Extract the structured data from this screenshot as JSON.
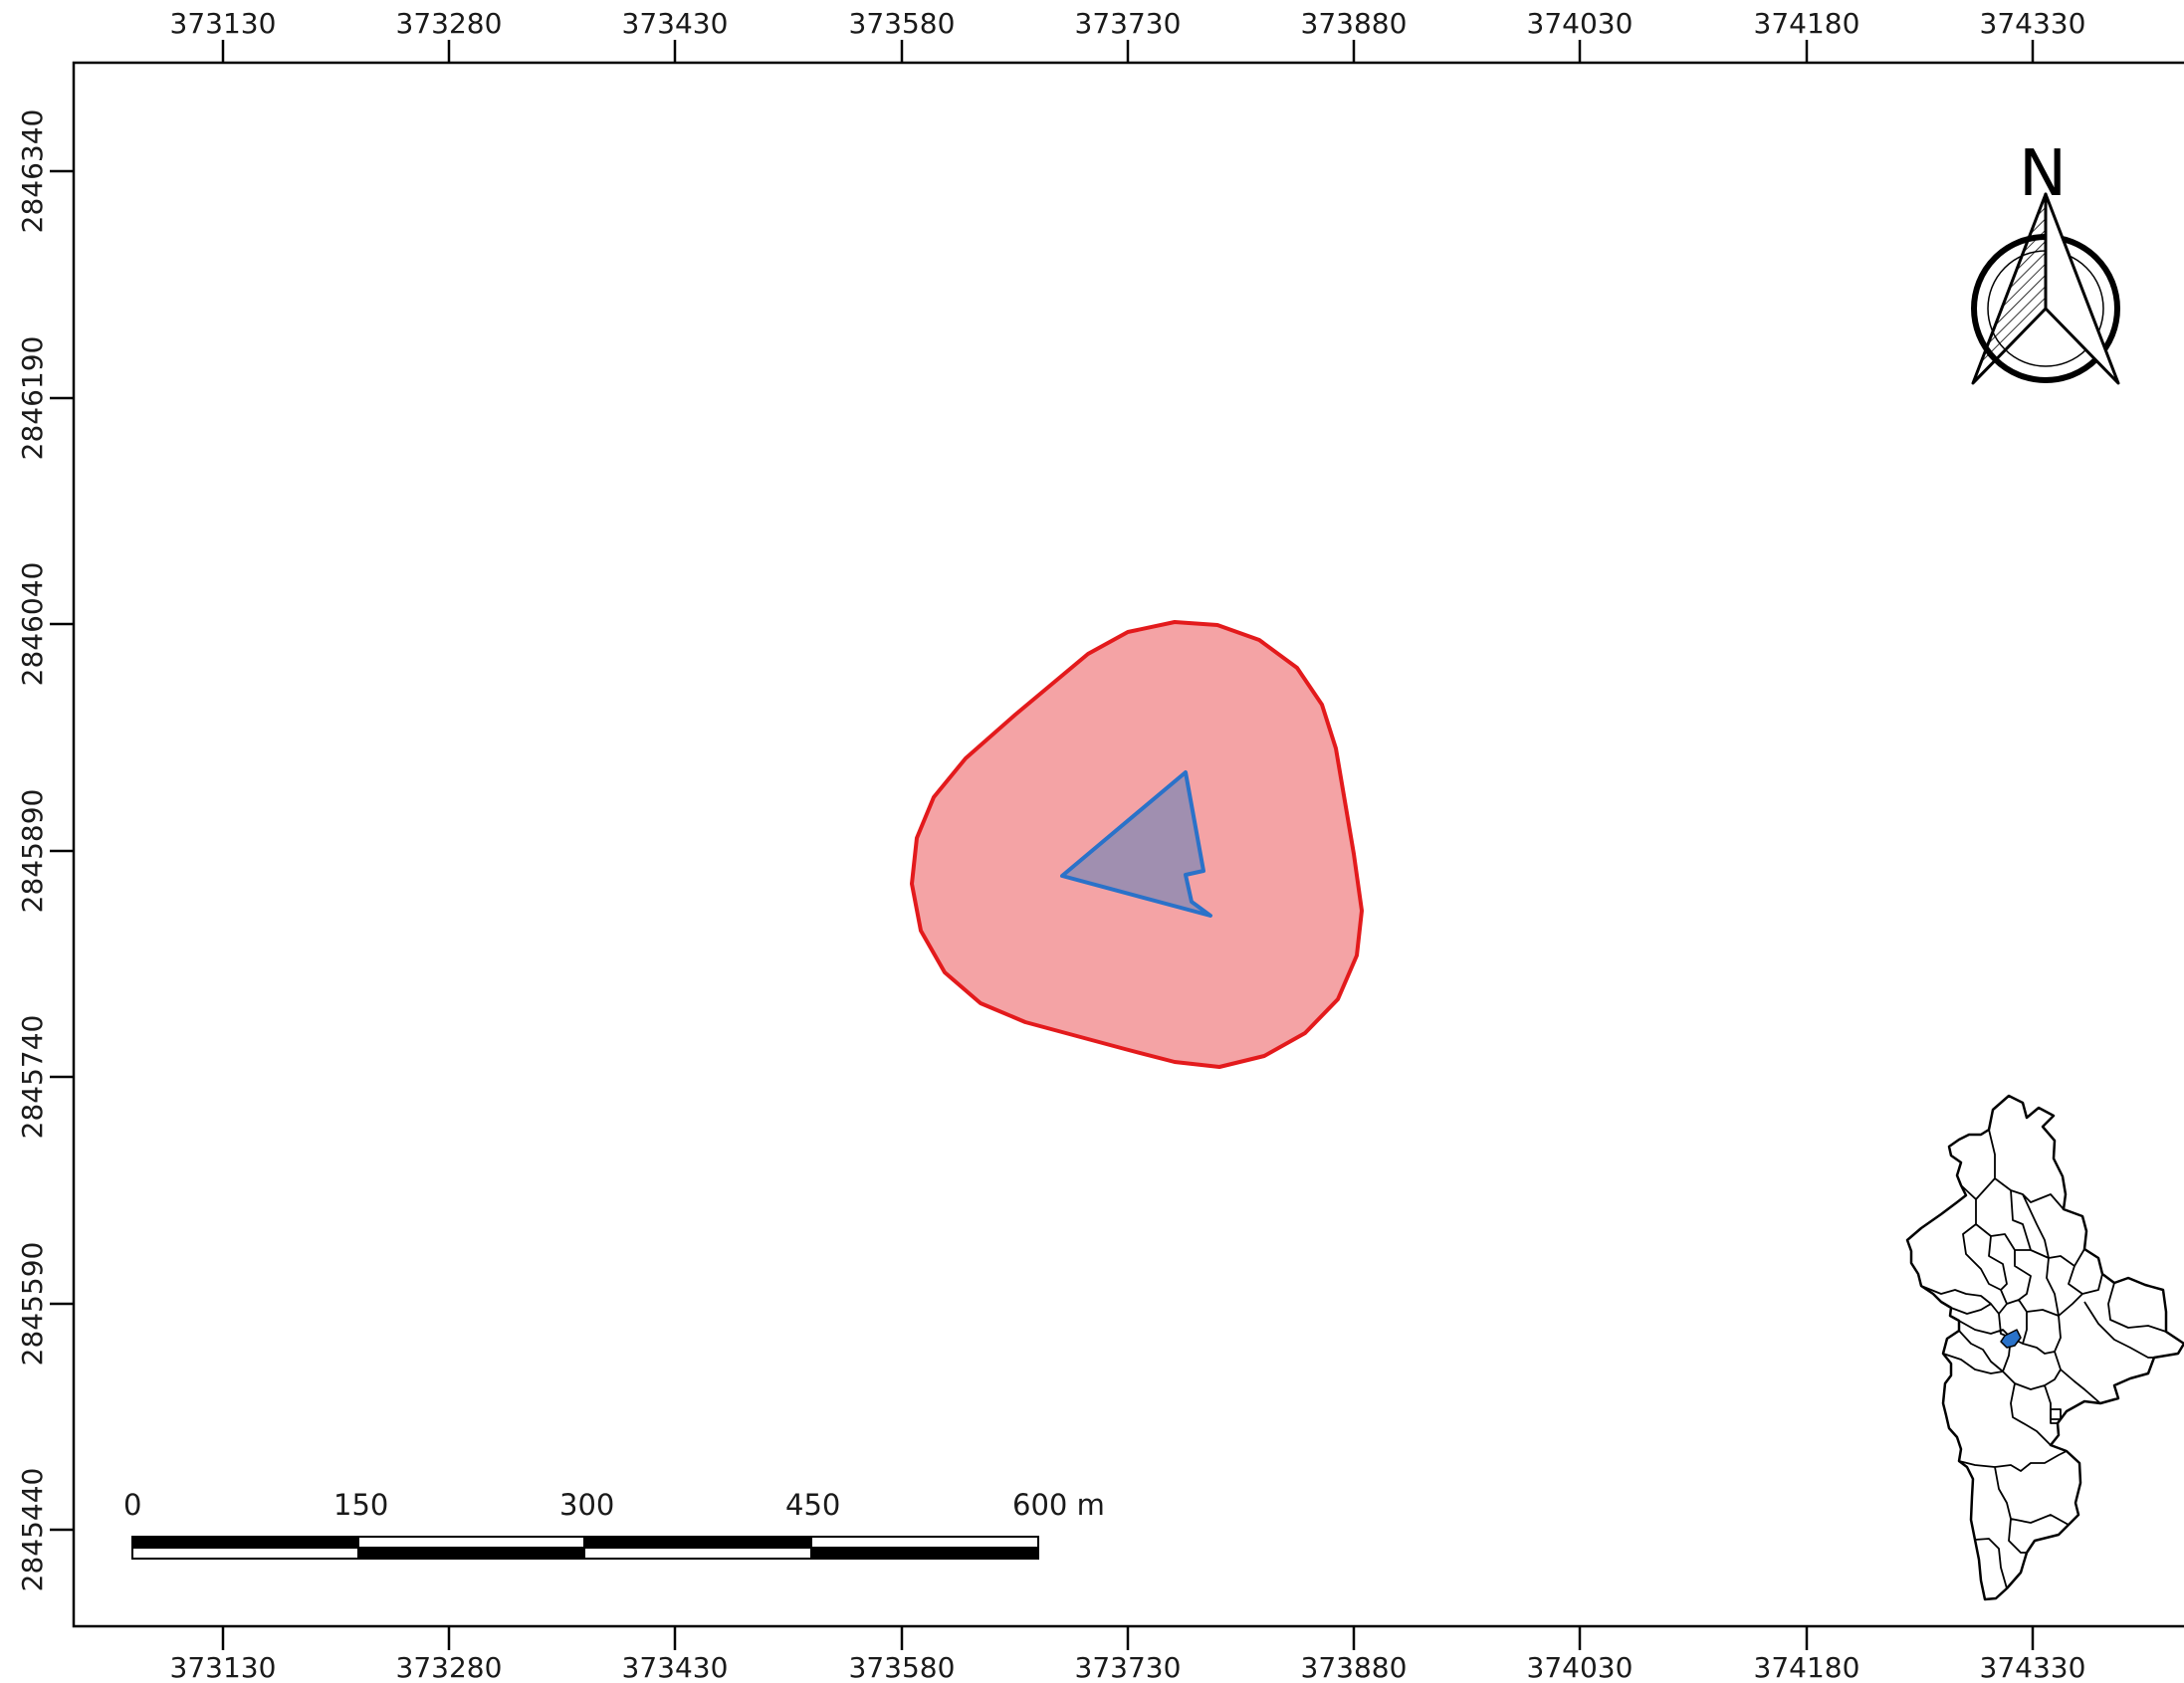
{
  "map": {
    "x_ticks": [
      "373130",
      "373280",
      "373430",
      "373580",
      "373730",
      "373880",
      "374030",
      "374180",
      "374330"
    ],
    "y_ticks": [
      "2846340",
      "2846190",
      "2846040",
      "2845890",
      "2845740",
      "2845590",
      "2845440"
    ],
    "north_arrow": {
      "label": "N",
      "icon": "north-arrow-icon"
    },
    "scale_bar": {
      "labels": [
        "0",
        "150",
        "300",
        "450",
        "600 m"
      ]
    },
    "layers": {
      "buffer": {
        "fill": "#f4a3a5",
        "stroke": "#e31a1c"
      },
      "site": {
        "fill": "#a08fb0",
        "stroke": "#2a72c9"
      }
    },
    "inset": {
      "icon": "municipalities-locator-icon",
      "highlight": "#2a72c9"
    }
  }
}
